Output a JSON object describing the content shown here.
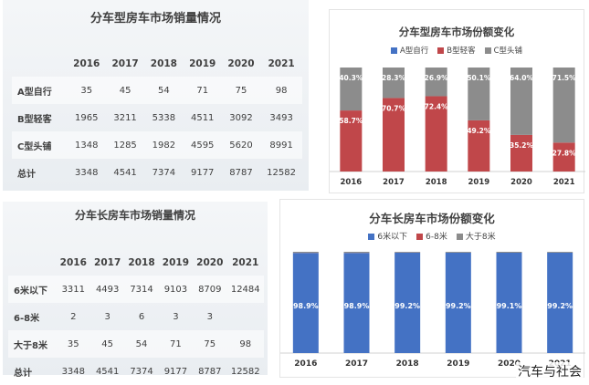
{
  "top_table": {
    "title": "分车型房车市场销量情况",
    "header": [
      "",
      "2016",
      "2017",
      "2018",
      "2019",
      "2020",
      "2021"
    ],
    "rows": [
      [
        "A型自行",
        "35",
        "45",
        "54",
        "71",
        "75",
        "98"
      ],
      [
        "B型轻客",
        "1965",
        "3211",
        "5338",
        "4511",
        "3092",
        "3493"
      ],
      [
        "C型头铺",
        "1348",
        "1285",
        "1982",
        "4595",
        "5620",
        "8991"
      ],
      [
        "总计",
        "3348",
        "4541",
        "7374",
        "9177",
        "8787",
        "12582"
      ]
    ]
  },
  "bottom_table": {
    "title": "分车长房车市场销量情况",
    "header": [
      "",
      "2016",
      "2017",
      "2018",
      "2019",
      "2020",
      "2021"
    ],
    "rows": [
      [
        "6米以下",
        "3311",
        "4493",
        "7314",
        "9103",
        "8709",
        "12484"
      ],
      [
        "6-8米",
        "2",
        "3",
        "6",
        "3",
        "3",
        ""
      ],
      [
        "大于8米",
        "35",
        "45",
        "54",
        "71",
        "75",
        "98"
      ],
      [
        "总计",
        "3348",
        "4541",
        "7374",
        "9177",
        "8787",
        "12582"
      ]
    ]
  },
  "chart_data": [
    {
      "type": "bar",
      "stacked": true,
      "percent_stacked": true,
      "title": "分车型房车市场份额变化",
      "categories": [
        "2016",
        "2017",
        "2018",
        "2019",
        "2020",
        "2021"
      ],
      "series": [
        {
          "name": "A型自行",
          "color": "#4472C4",
          "values": [
            0,
            0,
            0,
            0,
            0,
            0
          ],
          "labels": [
            "",
            "",
            "",
            "",
            "",
            ""
          ]
        },
        {
          "name": "B型轻客",
          "color": "#C0474A",
          "values": [
            58.7,
            70.7,
            72.4,
            49.2,
            35.2,
            27.8
          ],
          "labels": [
            "58.7%",
            "70.7%",
            "72.4%",
            "49.2%",
            "35.2%",
            "27.8%"
          ]
        },
        {
          "name": "C型头铺",
          "color": "#8C8C8C",
          "values": [
            40.3,
            28.3,
            26.9,
            50.1,
            64.0,
            71.5
          ],
          "labels": [
            "40.3%",
            "28.3%",
            "26.9%",
            "50.1%",
            "64.0%",
            "71.5%"
          ]
        }
      ],
      "legend_position": "top",
      "grid": false,
      "ylim": [
        0,
        100
      ]
    },
    {
      "type": "bar",
      "stacked": true,
      "percent_stacked": true,
      "title": "分车长房车市场份额变化",
      "categories": [
        "2016",
        "2017",
        "2018",
        "2019",
        "2020",
        "2021"
      ],
      "series": [
        {
          "name": "6米以下",
          "color": "#4472C4",
          "values": [
            98.9,
            98.9,
            99.2,
            99.2,
            99.1,
            99.2
          ],
          "labels": [
            "98.9%",
            "98.9%",
            "99.2%",
            "99.2%",
            "99.1%",
            "99.2%"
          ]
        },
        {
          "name": "6-8米",
          "color": "#C0474A",
          "values": [
            0.1,
            0.1,
            0.1,
            0.0,
            0.0,
            0.0
          ],
          "labels": [
            "",
            "",
            "",
            "",
            "",
            ""
          ]
        },
        {
          "name": "大于8米",
          "color": "#8C8C8C",
          "values": [
            1.0,
            1.0,
            0.7,
            0.8,
            0.9,
            0.8
          ],
          "labels": [
            "",
            "",
            "",
            "",
            "",
            ""
          ]
        }
      ],
      "legend_position": "top",
      "grid": false,
      "ylim": [
        0,
        100
      ]
    }
  ],
  "watermark": "汽车与社会"
}
